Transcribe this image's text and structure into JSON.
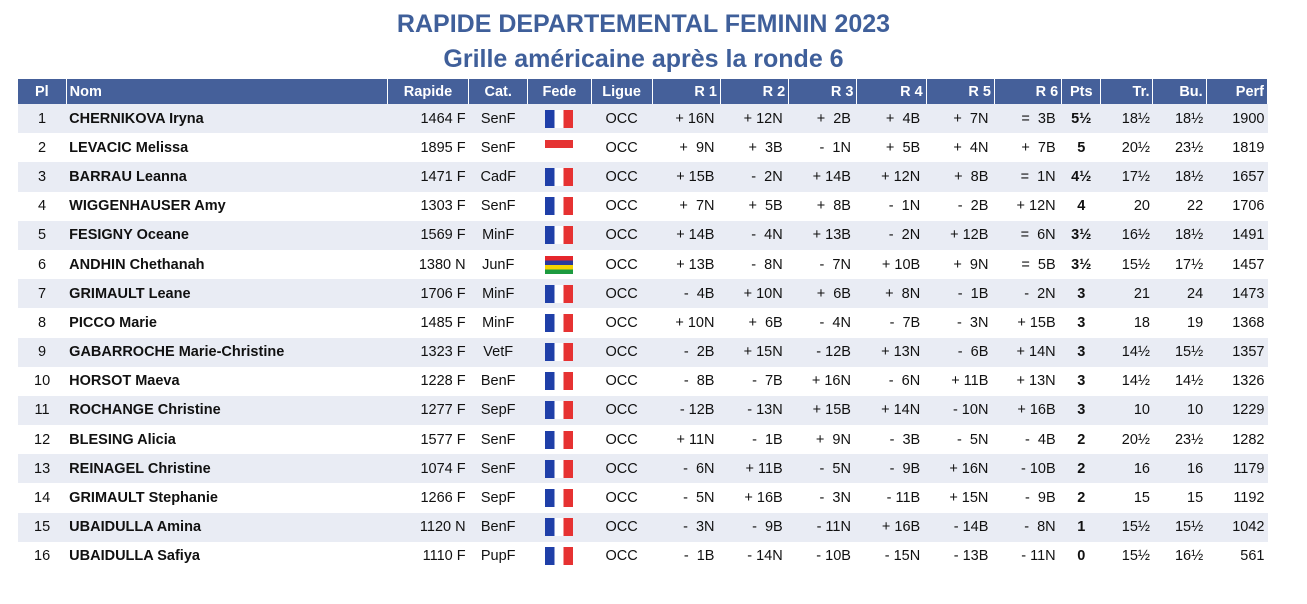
{
  "title": "RAPIDE DEPARTEMENTAL FEMININ 2023",
  "subtitle": "Grille américaine après la ronde 6",
  "headers": {
    "pl": "Pl",
    "nom": "Nom",
    "rapide": "Rapide",
    "cat": "Cat.",
    "fede": "Fede",
    "ligue": "Ligue",
    "r1": "R 1",
    "r2": "R 2",
    "r3": "R 3",
    "r4": "R 4",
    "r5": "R 5",
    "r6": "R 6",
    "pts": "Pts",
    "tr": "Tr.",
    "bu": "Bu.",
    "perf": "Perf"
  },
  "rows": [
    {
      "pl": "1",
      "nom": "CHERNIKOVA Iryna",
      "rapide": "1464 F",
      "cat": "SenF",
      "fede": "fr-flag-icon",
      "ligue": "OCC",
      "r1": "+ 16N",
      "r2": "+ 12N",
      "r3": "+  2B",
      "r4": "+  4B",
      "r5": "+  7N",
      "r6": "=  3B",
      "pts": "5½",
      "tr": "18½",
      "bu": "18½",
      "perf": "1900"
    },
    {
      "pl": "2",
      "nom": "LEVACIC Melissa",
      "rapide": "1895 F",
      "cat": "SenF",
      "fede": "red-flag-icon",
      "ligue": "OCC",
      "r1": "+  9N",
      "r2": "+  3B",
      "r3": "-  1N",
      "r4": "+  5B",
      "r5": "+  4N",
      "r6": "+  7B",
      "pts": "5",
      "tr": "20½",
      "bu": "23½",
      "perf": "1819"
    },
    {
      "pl": "3",
      "nom": "BARRAU Leanna",
      "rapide": "1471 F",
      "cat": "CadF",
      "fede": "fr-flag-icon",
      "ligue": "OCC",
      "r1": "+ 15B",
      "r2": "-  2N",
      "r3": "+ 14B",
      "r4": "+ 12N",
      "r5": "+  8B",
      "r6": "=  1N",
      "pts": "4½",
      "tr": "17½",
      "bu": "18½",
      "perf": "1657"
    },
    {
      "pl": "4",
      "nom": "WIGGENHAUSER Amy",
      "rapide": "1303 F",
      "cat": "SenF",
      "fede": "fr-flag-icon",
      "ligue": "OCC",
      "r1": "+  7N",
      "r2": "+  5B",
      "r3": "+  8B",
      "r4": "-  1N",
      "r5": "-  2B",
      "r6": "+ 12N",
      "pts": "4",
      "tr": "20",
      "bu": "22",
      "perf": "1706"
    },
    {
      "pl": "5",
      "nom": "FESIGNY Oceane",
      "rapide": "1569 F",
      "cat": "MinF",
      "fede": "fr-flag-icon",
      "ligue": "OCC",
      "r1": "+ 14B",
      "r2": "-  4N",
      "r3": "+ 13B",
      "r4": "-  2N",
      "r5": "+ 12B",
      "r6": "=  6N",
      "pts": "3½",
      "tr": "16½",
      "bu": "18½",
      "perf": "1491"
    },
    {
      "pl": "6",
      "nom": "ANDHIN Chethanah",
      "rapide": "1380 N",
      "cat": "JunF",
      "fede": "mu-flag-icon",
      "ligue": "OCC",
      "r1": "+ 13B",
      "r2": "-  8N",
      "r3": "-  7N",
      "r4": "+ 10B",
      "r5": "+  9N",
      "r6": "=  5B",
      "pts": "3½",
      "tr": "15½",
      "bu": "17½",
      "perf": "1457"
    },
    {
      "pl": "7",
      "nom": "GRIMAULT Leane",
      "rapide": "1706 F",
      "cat": "MinF",
      "fede": "fr-flag-icon",
      "ligue": "OCC",
      "r1": "-  4B",
      "r2": "+ 10N",
      "r3": "+  6B",
      "r4": "+  8N",
      "r5": "-  1B",
      "r6": "-  2N",
      "pts": "3",
      "tr": "21",
      "bu": "24",
      "perf": "1473"
    },
    {
      "pl": "8",
      "nom": "PICCO Marie",
      "rapide": "1485 F",
      "cat": "MinF",
      "fede": "fr-flag-icon",
      "ligue": "OCC",
      "r1": "+ 10N",
      "r2": "+  6B",
      "r3": "-  4N",
      "r4": "-  7B",
      "r5": "-  3N",
      "r6": "+ 15B",
      "pts": "3",
      "tr": "18",
      "bu": "19",
      "perf": "1368"
    },
    {
      "pl": "9",
      "nom": "GABARROCHE Marie-Christine",
      "rapide": "1323 F",
      "cat": "VetF",
      "fede": "fr-flag-icon",
      "ligue": "OCC",
      "r1": "-  2B",
      "r2": "+ 15N",
      "r3": "- 12B",
      "r4": "+ 13N",
      "r5": "-  6B",
      "r6": "+ 14N",
      "pts": "3",
      "tr": "14½",
      "bu": "15½",
      "perf": "1357"
    },
    {
      "pl": "10",
      "nom": "HORSOT Maeva",
      "rapide": "1228 F",
      "cat": "BenF",
      "fede": "fr-flag-icon",
      "ligue": "OCC",
      "r1": "-  8B",
      "r2": "-  7B",
      "r3": "+ 16N",
      "r4": "-  6N",
      "r5": "+ 11B",
      "r6": "+ 13N",
      "pts": "3",
      "tr": "14½",
      "bu": "14½",
      "perf": "1326"
    },
    {
      "pl": "11",
      "nom": "ROCHANGE Christine",
      "rapide": "1277 F",
      "cat": "SepF",
      "fede": "fr-flag-icon",
      "ligue": "OCC",
      "r1": "- 12B",
      "r2": "- 13N",
      "r3": "+ 15B",
      "r4": "+ 14N",
      "r5": "- 10N",
      "r6": "+ 16B",
      "pts": "3",
      "tr": "10",
      "bu": "10",
      "perf": "1229"
    },
    {
      "pl": "12",
      "nom": "BLESING Alicia",
      "rapide": "1577 F",
      "cat": "SenF",
      "fede": "fr-flag-icon",
      "ligue": "OCC",
      "r1": "+ 11N",
      "r2": "-  1B",
      "r3": "+  9N",
      "r4": "-  3B",
      "r5": "-  5N",
      "r6": "-  4B",
      "pts": "2",
      "tr": "20½",
      "bu": "23½",
      "perf": "1282"
    },
    {
      "pl": "13",
      "nom": "REINAGEL Christine",
      "rapide": "1074 F",
      "cat": "SenF",
      "fede": "fr-flag-icon",
      "ligue": "OCC",
      "r1": "-  6N",
      "r2": "+ 11B",
      "r3": "-  5N",
      "r4": "-  9B",
      "r5": "+ 16N",
      "r6": "- 10B",
      "pts": "2",
      "tr": "16",
      "bu": "16",
      "perf": "1179"
    },
    {
      "pl": "14",
      "nom": "GRIMAULT Stephanie",
      "rapide": "1266 F",
      "cat": "SepF",
      "fede": "fr-flag-icon",
      "ligue": "OCC",
      "r1": "-  5N",
      "r2": "+ 16B",
      "r3": "-  3N",
      "r4": "- 11B",
      "r5": "+ 15N",
      "r6": "-  9B",
      "pts": "2",
      "tr": "15",
      "bu": "15",
      "perf": "1192"
    },
    {
      "pl": "15",
      "nom": "UBAIDULLA Amina",
      "rapide": "1120 N",
      "cat": "BenF",
      "fede": "fr-flag-icon",
      "ligue": "OCC",
      "r1": "-  3N",
      "r2": "-  9B",
      "r3": "- 11N",
      "r4": "+ 16B",
      "r5": "- 14B",
      "r6": "-  8N",
      "pts": "1",
      "tr": "15½",
      "bu": "15½",
      "perf": "1042"
    },
    {
      "pl": "16",
      "nom": "UBAIDULLA Safiya",
      "rapide": "1110 F",
      "cat": "PupF",
      "fede": "fr-flag-icon",
      "ligue": "OCC",
      "r1": "-  1B",
      "r2": "- 14N",
      "r3": "- 10B",
      "r4": "- 15N",
      "r5": "- 13B",
      "r6": "- 11N",
      "pts": "0",
      "tr": "15½",
      "bu": "16½",
      "perf": "561"
    }
  ]
}
